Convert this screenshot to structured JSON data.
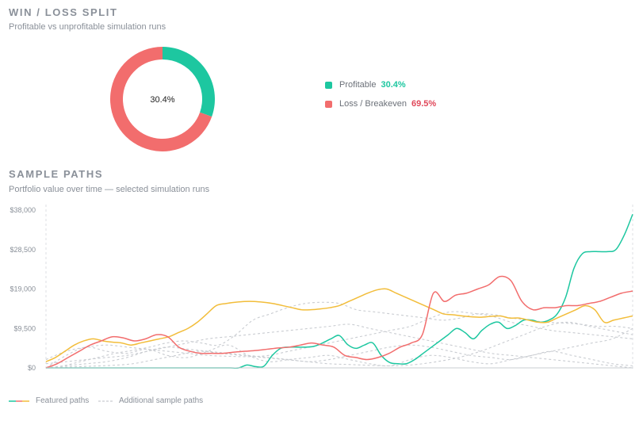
{
  "win_loss": {
    "title": "WIN / LOSS SPLIT",
    "subtitle": "Profitable vs unprofitable simulation runs",
    "center_label": "30.4%"
  },
  "sample_paths": {
    "title": "SAMPLE PATHS",
    "subtitle": "Portfolio value over time — selected simulation runs"
  },
  "bottom_legend": {
    "featured": "Featured paths",
    "additional": "Additional sample paths"
  },
  "colors": {
    "profit": "#1dc7a0",
    "loss": "#f26d6d",
    "loss_text": "#e0485a",
    "gold": "#f2bd3a",
    "grey": "#c9ccd1"
  },
  "chart_data": [
    {
      "type": "pie",
      "variant": "donut",
      "labels": [
        "Profitable",
        "Loss / Breakeven"
      ],
      "values": [
        30.4,
        69.5
      ],
      "value_labels": [
        "30.4%",
        "69.5%"
      ],
      "legend_position": "right"
    },
    {
      "type": "line",
      "ylim": [
        0,
        38000
      ],
      "yticks": [
        0,
        9500,
        19000,
        28500,
        38000
      ],
      "ytick_labels": [
        "$0",
        "$9,500",
        "$19,000",
        "$28,500",
        "$38,000"
      ],
      "grid": false,
      "legend_position": "bottom-left",
      "series": [
        {
          "style": "featured-green",
          "values": [
            0,
            0,
            0,
            0,
            0,
            0,
            0,
            0,
            0,
            0,
            0,
            0,
            0,
            0,
            0,
            0,
            0,
            0,
            0,
            0,
            0,
            0,
            0,
            0,
            700,
            300,
            400,
            3000,
            4700,
            5000,
            5000,
            5000,
            5200,
            6000,
            7000,
            7800,
            5600,
            4700,
            5500,
            6000,
            3000,
            1300,
            1000,
            1000,
            2000,
            3500,
            5000,
            6500,
            8000,
            9500,
            8500,
            7000,
            9000,
            10500,
            11000,
            9500,
            10200,
            11500,
            11500,
            11000,
            11500,
            13000,
            17000,
            24000,
            27500,
            28000,
            28000,
            28000,
            28500,
            32000,
            37000
          ]
        },
        {
          "style": "featured-gold",
          "values": [
            1500,
            2500,
            4000,
            5500,
            6500,
            7000,
            6500,
            6200,
            6000,
            5500,
            6000,
            6500,
            7000,
            7500,
            8500,
            9500,
            11000,
            13000,
            15000,
            15500,
            15800,
            16000,
            16000,
            15800,
            15500,
            15000,
            14500,
            14000,
            14000,
            14200,
            14500,
            15000,
            16000,
            17000,
            18000,
            18800,
            19000,
            18000,
            17000,
            16000,
            15000,
            14000,
            13000,
            12800,
            12500,
            12300,
            12200,
            12400,
            12500,
            12000,
            12000,
            11500,
            11000,
            11000,
            12000,
            13000,
            14000,
            15000,
            14000,
            11000,
            11500,
            12000,
            12500
          ]
        },
        {
          "style": "featured-red",
          "values": [
            0,
            1000,
            2500,
            4000,
            5500,
            6500,
            7500,
            7200,
            6500,
            7000,
            8000,
            7500,
            5000,
            4000,
            3500,
            3500,
            3500,
            3800,
            4000,
            4200,
            4500,
            4800,
            5000,
            5500,
            6000,
            5500,
            5000,
            3000,
            2500,
            2000,
            2500,
            3500,
            5000,
            6000,
            8000,
            18000,
            16000,
            17500,
            18000,
            19000,
            20000,
            22000,
            21000,
            16000,
            14000,
            14500,
            14500,
            15000,
            15000,
            15500,
            16000,
            17000,
            18000,
            18500
          ]
        },
        {
          "style": "sample",
          "values": [
            0,
            500,
            1500,
            2500,
            3500,
            4200,
            5000,
            6000,
            6500,
            6000,
            5500,
            8000,
            11500,
            13000,
            14500,
            15500,
            15800,
            15500,
            14000,
            13500,
            13000,
            12500,
            12000,
            11500,
            12000,
            13000,
            12800,
            12000,
            11500,
            11000,
            10800,
            10500,
            10000,
            10000,
            9500
          ]
        },
        {
          "style": "sample",
          "values": [
            2000,
            4000,
            5000,
            5500,
            5000,
            4500,
            4000,
            3500,
            3000,
            2800,
            2700,
            3000,
            4000,
            5000,
            6000,
            7000,
            8000,
            9000,
            10000,
            12000,
            13500,
            13200,
            12500,
            11000,
            10000,
            9000,
            8500,
            8000,
            7500,
            7000
          ]
        },
        {
          "style": "sample",
          "values": [
            0,
            3000,
            5000,
            4000,
            3500,
            4500,
            3000,
            2500,
            4000,
            5500,
            3000,
            1500,
            2000,
            2500,
            3000,
            2000,
            1000,
            500,
            2000,
            3000,
            2500,
            1500,
            1000,
            2000,
            3000,
            4000,
            3000,
            2000,
            1000,
            500
          ]
        },
        {
          "style": "sample",
          "values": [
            0,
            200,
            400,
            600,
            1000,
            2000,
            3000,
            4000,
            3500,
            3000,
            2500,
            2000,
            1500,
            1000,
            800,
            600,
            500,
            800,
            1500,
            2500,
            4000,
            6000,
            8000,
            10000,
            11000,
            10000,
            9000,
            8000
          ]
        },
        {
          "style": "sample",
          "values": [
            0,
            500,
            1000,
            1500,
            2500,
            4000,
            5000,
            4500,
            4000,
            3500,
            3000,
            2500,
            2000,
            1500,
            2000,
            3000,
            4000,
            5000,
            5500,
            5000,
            4000,
            3000,
            2500,
            2000,
            3000,
            4000,
            5000,
            6000,
            7000,
            9500
          ]
        },
        {
          "style": "sample",
          "values": [
            1000,
            1500,
            2000,
            2500,
            3000,
            4000,
            5000,
            6000,
            7000,
            7500,
            8000,
            8500,
            9000,
            9500,
            10000,
            10500,
            9500,
            8500,
            7500,
            6500,
            5500,
            4500,
            3500,
            3000,
            2500,
            2000,
            1500,
            1000,
            500,
            0
          ]
        }
      ]
    }
  ]
}
